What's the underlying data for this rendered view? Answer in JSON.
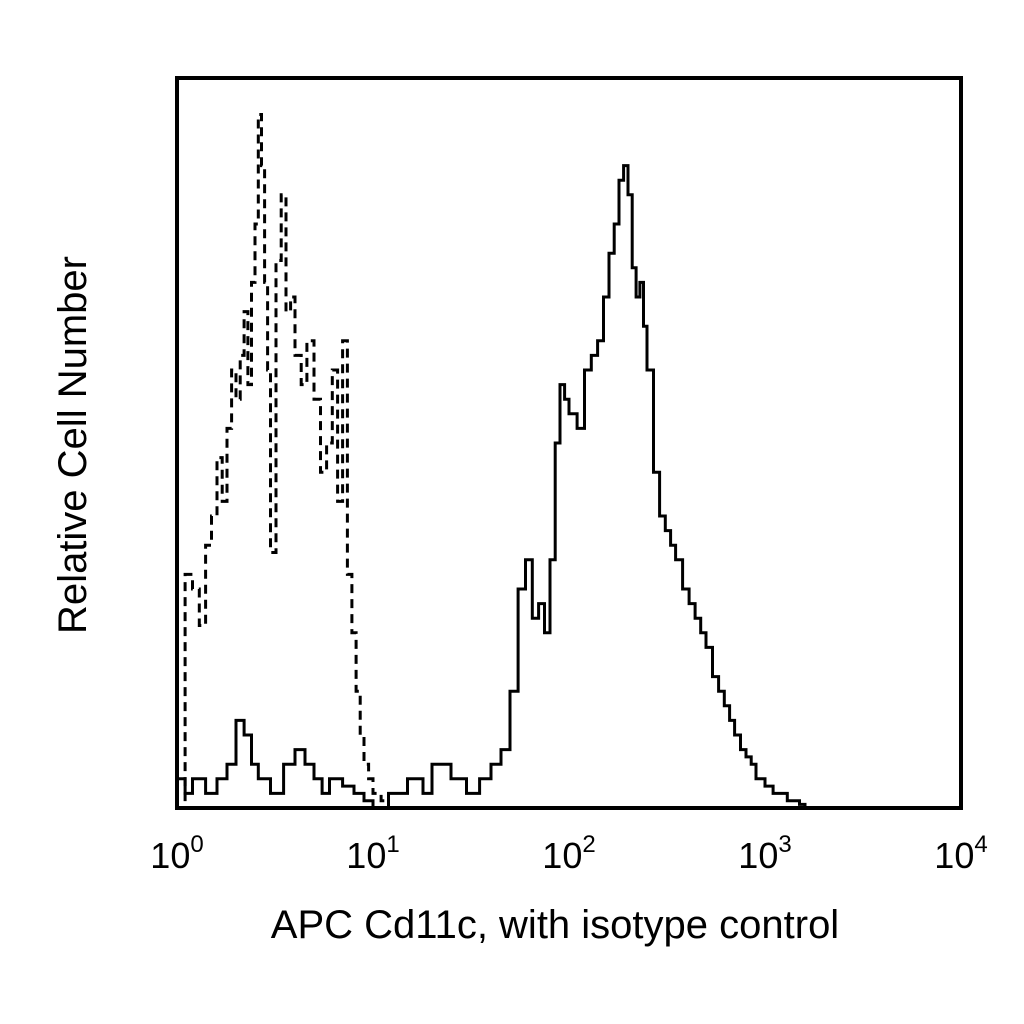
{
  "chart_data": {
    "type": "line",
    "title": "",
    "xlabel": "APC Cd11c, with isotype control",
    "ylabel": "Relative Cell Number",
    "x_scale": "log",
    "xlim": [
      1,
      10000
    ],
    "ylim": [
      0,
      100
    ],
    "grid": false,
    "x_ticks": [
      {
        "base": "10",
        "exp": "0",
        "value": 1
      },
      {
        "base": "10",
        "exp": "1",
        "value": 10
      },
      {
        "base": "10",
        "exp": "2",
        "value": 100
      },
      {
        "base": "10",
        "exp": "3",
        "value": 1000
      },
      {
        "base": "10",
        "exp": "4",
        "value": 10000
      }
    ],
    "series": [
      {
        "style": "dashed",
        "color": "#000000",
        "x": [
          1.0,
          1.1,
          1.2,
          1.3,
          1.4,
          1.5,
          1.6,
          1.7,
          1.8,
          1.9,
          2.0,
          2.1,
          2.2,
          2.3,
          2.4,
          2.5,
          2.6,
          2.7,
          2.8,
          2.9,
          3.0,
          3.2,
          3.4,
          3.6,
          3.8,
          4.0,
          4.3,
          4.6,
          5.0,
          5.4,
          5.8,
          6.2,
          6.6,
          7.0,
          7.4,
          7.8,
          8.2,
          8.6,
          9.0,
          9.5,
          10.0,
          11.0,
          12.0,
          13.0
        ],
        "y": [
          0,
          32,
          30,
          25,
          36,
          40,
          48,
          42,
          52,
          60,
          56,
          62,
          68,
          58,
          72,
          80,
          95,
          88,
          72,
          60,
          35,
          75,
          84,
          68,
          70,
          62,
          58,
          64,
          56,
          46,
          50,
          60,
          42,
          64,
          32,
          24,
          16,
          10,
          6,
          4,
          2,
          1,
          0,
          0
        ]
      },
      {
        "style": "solid",
        "color": "#000000",
        "x": [
          1.0,
          1.1,
          1.2,
          1.4,
          1.6,
          1.8,
          2.0,
          2.2,
          2.4,
          2.6,
          3.0,
          3.5,
          4.0,
          4.5,
          5.0,
          5.5,
          6.0,
          7.0,
          8.0,
          9.0,
          10.0,
          12.0,
          15.0,
          18.0,
          20.0,
          25.0,
          30.0,
          35.0,
          40.0,
          45.0,
          50.0,
          55.0,
          60.0,
          65.0,
          70.0,
          75.0,
          80.0,
          85.0,
          90.0,
          95.0,
          100,
          110,
          120,
          130,
          140,
          150,
          160,
          170,
          180,
          190,
          200,
          210,
          220,
          230,
          240,
          250,
          270,
          290,
          310,
          330,
          350,
          380,
          410,
          440,
          470,
          500,
          540,
          580,
          620,
          660,
          700,
          750,
          800,
          850,
          900,
          950,
          1000,
          1100,
          1200,
          1300,
          1400,
          1500,
          1600
        ],
        "y": [
          4,
          2,
          4,
          2,
          4,
          6,
          12,
          10,
          6,
          4,
          2,
          6,
          8,
          6,
          4,
          2,
          4,
          3,
          2,
          1,
          0,
          2,
          4,
          2,
          6,
          4,
          2,
          4,
          6,
          8,
          16,
          30,
          34,
          26,
          28,
          24,
          34,
          50,
          58,
          56,
          54,
          52,
          60,
          62,
          64,
          70,
          76,
          80,
          86,
          88,
          84,
          74,
          70,
          72,
          66,
          60,
          46,
          40,
          38,
          36,
          34,
          30,
          28,
          26,
          24,
          22,
          18,
          16,
          14,
          12,
          10,
          8,
          7,
          6,
          4,
          4,
          3,
          2,
          2,
          1,
          1,
          0.5,
          0
        ]
      }
    ]
  }
}
